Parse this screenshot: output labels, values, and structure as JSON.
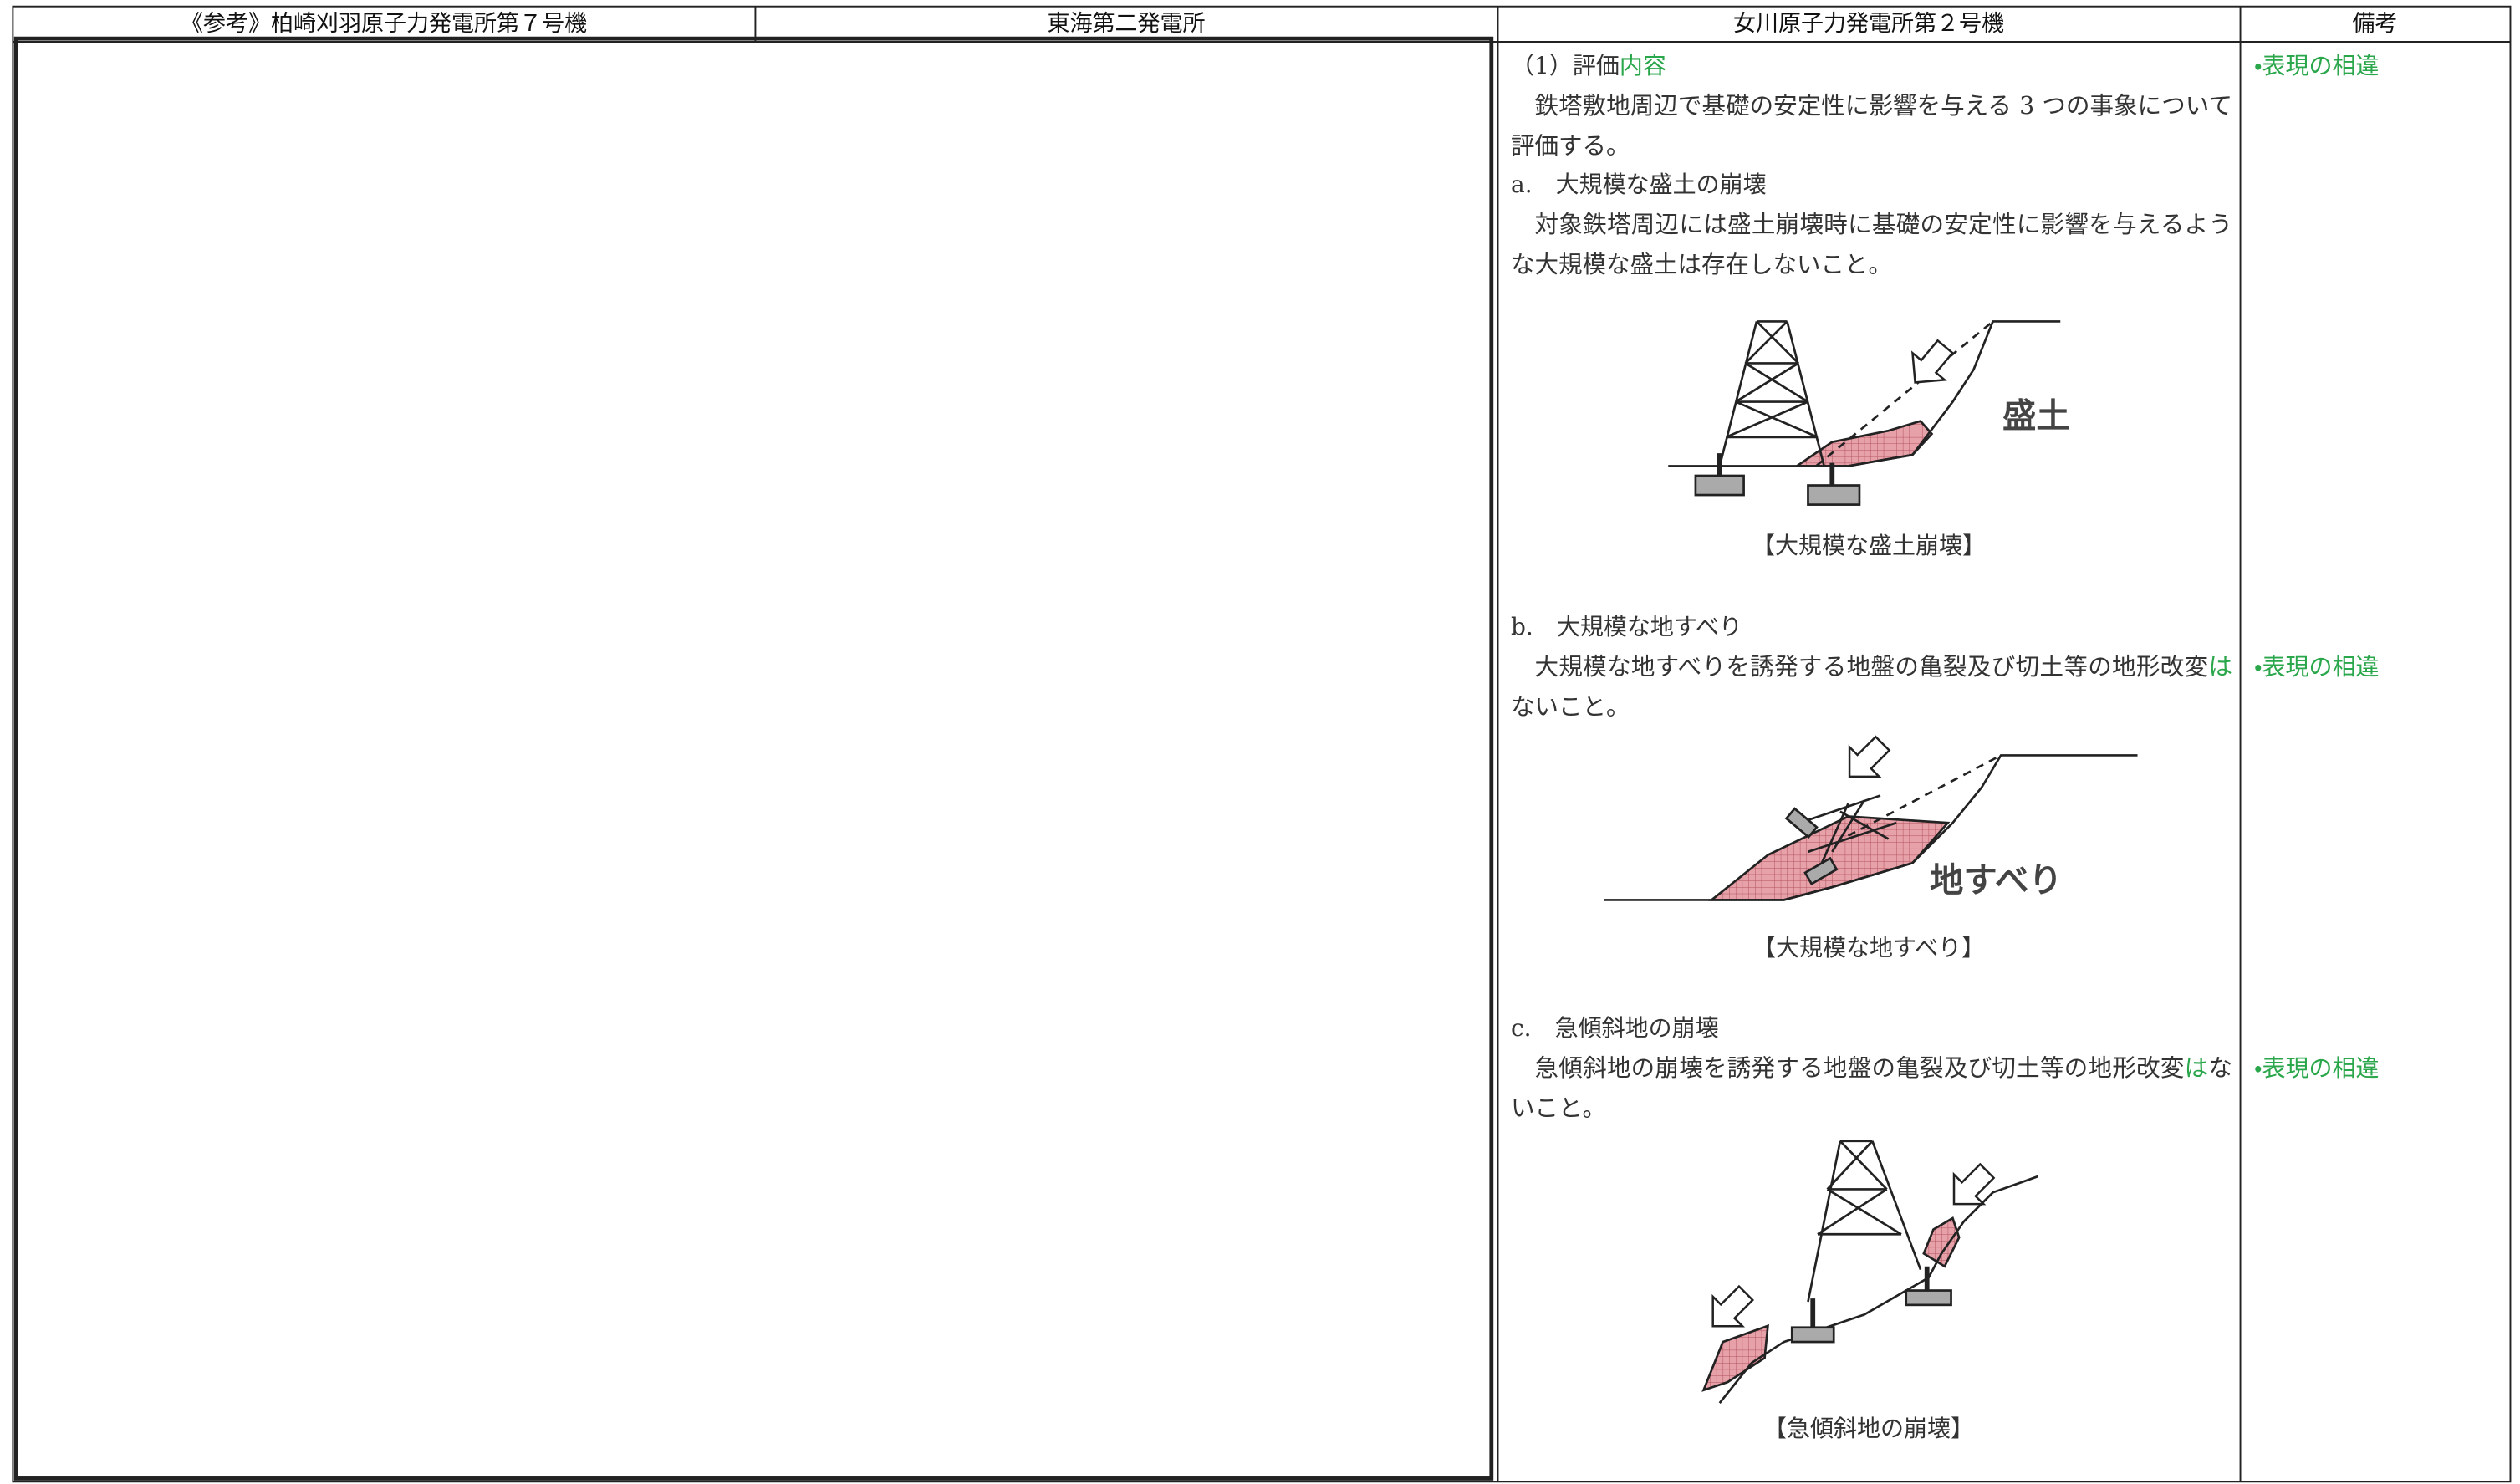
{
  "header": [
    "《参考》柏崎刈羽原子力発電所第７号機",
    "東海第二発電所",
    "女川原子力発電所第２号機",
    "備考"
  ],
  "content": {
    "heading": [
      "（1）評価",
      "内容"
    ],
    "intro": "鉄塔敷地周辺で基礎の安定性に影響を与える 3 つの事象について評価する。",
    "items": [
      {
        "title": "a.　大規模な盛土の崩壊",
        "text": [
          "対象鉄塔周辺には盛土崩壊時に基礎の安定性に影響を与えるような大規模な盛土は存在しないこと。"
        ],
        "figure_label": "盛土",
        "caption": "【大規模な盛土崩壊】"
      },
      {
        "title": "b.　大規模な地すべり",
        "text": [
          "大規模な地すべりを誘発する地盤の亀裂及び切土等の地形改変",
          "は",
          "ないこと。"
        ],
        "figure_label": "地すべり",
        "caption": "【大規模な地すべり】"
      },
      {
        "title": "c.　急傾斜地の崩壊",
        "text": [
          "急傾斜地の崩壊を誘発する地盤の亀裂及び切土等の地形改変",
          "は",
          "ないこと。"
        ],
        "caption": "【急傾斜地の崩壊】"
      }
    ]
  },
  "notes": [
    "・表現の相違",
    "・表現の相違",
    "・表現の相違"
  ]
}
